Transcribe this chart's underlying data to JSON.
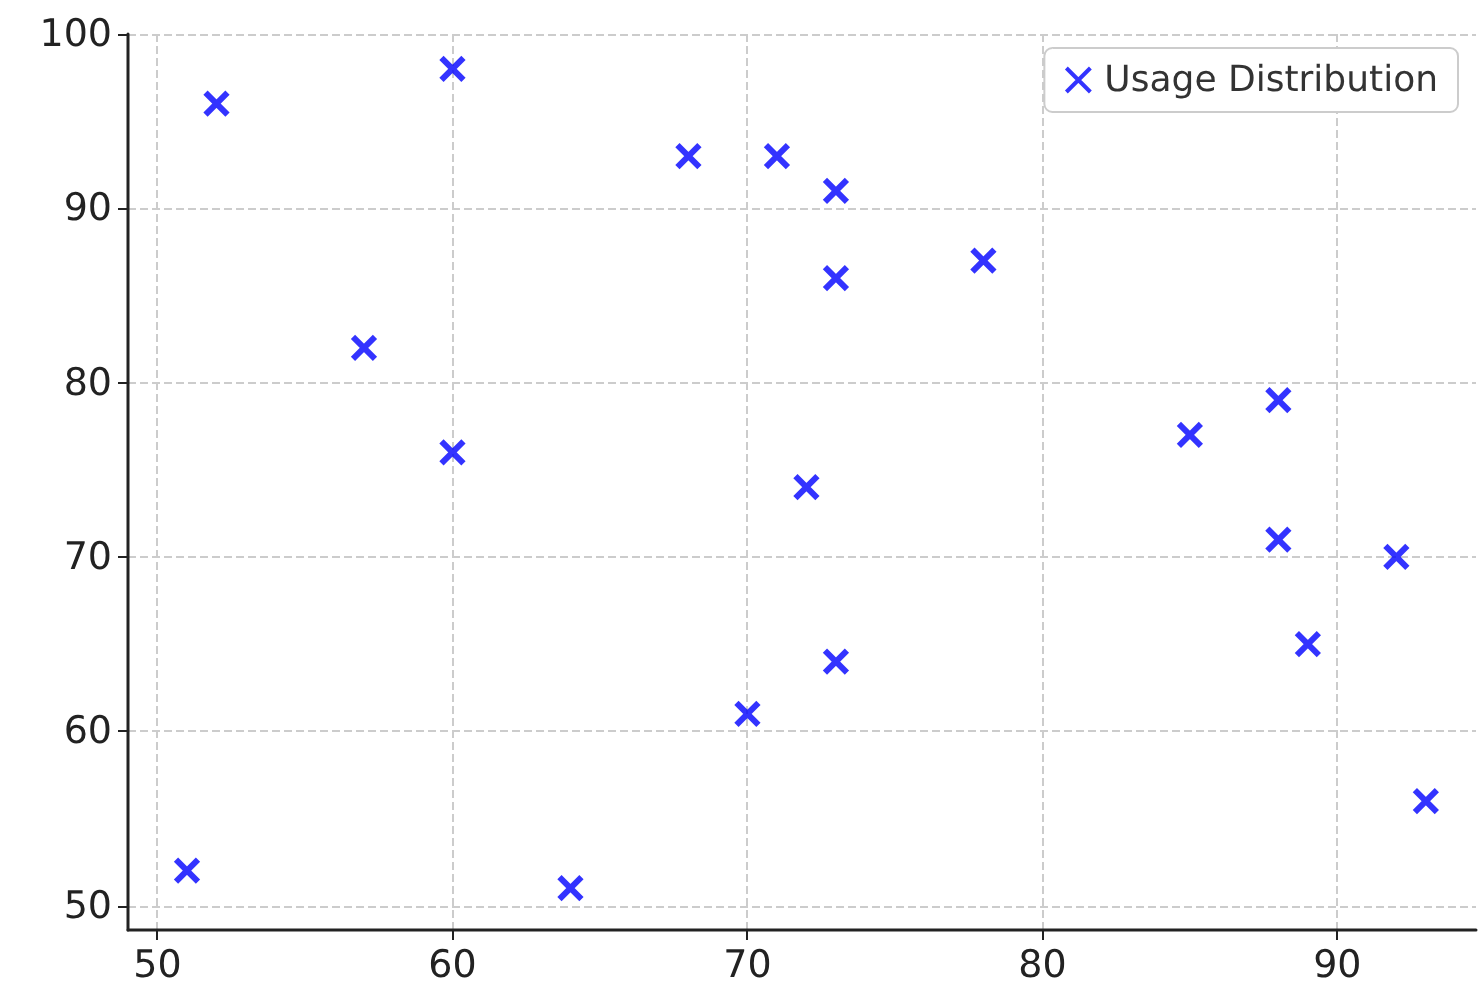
{
  "chart_data": {
    "type": "scatter",
    "series": [
      {
        "name": "Usage Distribution",
        "color": "#0000ff",
        "x": [
          52,
          60,
          57,
          60,
          51,
          64,
          68,
          71,
          73,
          73,
          78,
          72,
          70,
          73,
          85,
          88,
          88,
          89,
          92,
          93
        ],
        "values": [
          96,
          98,
          82,
          76,
          52,
          51,
          93,
          93,
          91,
          86,
          87,
          74,
          61,
          64,
          77,
          79,
          71,
          65,
          70,
          56
        ]
      }
    ],
    "xlim": [
      49,
      94.7
    ],
    "ylim": [
      48.6,
      100
    ],
    "xticks": [
      50,
      60,
      70,
      80,
      90
    ],
    "yticks": [
      50,
      60,
      70,
      80,
      90,
      100
    ],
    "grid": true,
    "legend": "top right",
    "marker": "cross"
  }
}
